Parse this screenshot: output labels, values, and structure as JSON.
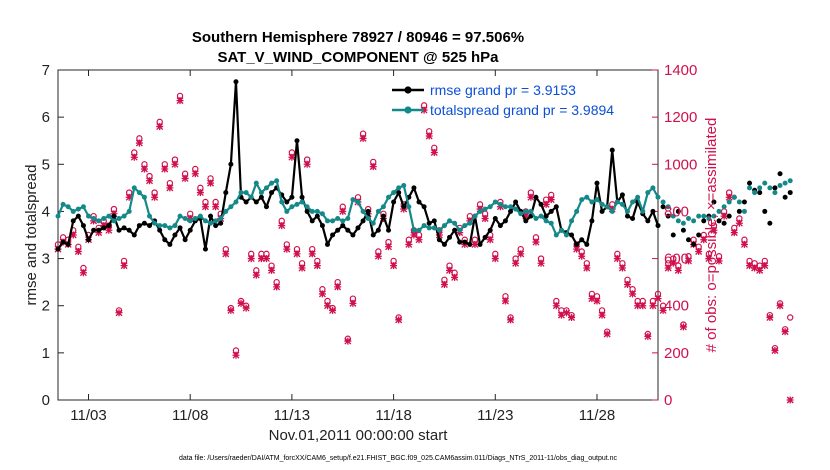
{
  "chart_data": {
    "type": "line",
    "title": "Southern Hemisphere 78927 / 80946 = 97.506%",
    "subtitle": "SAT_V_WIND_COMPONENT @ 525 hPa",
    "xlabel": "Nov.01,2011 00:00:00 start",
    "ylabel": "rmse and totalspread",
    "ylabel_right": "# of obs: o=possible; ×=assimilated",
    "footer": "data file: /Users/raeder/DAI/ATM_forcXX/CAM6_setup/f.e21.FHIST_BGC.f09_025.CAM6assim.011/Diags_NTrS_2011-11/obs_diag_output.nc",
    "xlim": [
      1.5,
      31.0
    ],
    "ylim": [
      0,
      7
    ],
    "ylim_right": [
      0,
      1400
    ],
    "x_tick_labels": [
      "11/03",
      "11/08",
      "11/13",
      "11/18",
      "11/23",
      "11/28"
    ],
    "x_tick_values": [
      3,
      8,
      13,
      18,
      23,
      28
    ],
    "y_ticks": [
      0,
      1,
      2,
      3,
      4,
      5,
      6,
      7
    ],
    "y_ticks_right": [
      0,
      200,
      400,
      600,
      800,
      1000,
      1200,
      1400
    ],
    "legend": [
      {
        "label": "rmse grand pr = 3.9153",
        "color": "#000000"
      },
      {
        "label": "totalspread grand pr = 3.9894",
        "color": "#15898a"
      }
    ],
    "x_start": 1.5,
    "x_step": 0.25,
    "series": [
      {
        "name": "rmse",
        "color": "#000000",
        "axis": "left",
        "values": [
          3.2,
          3.35,
          3.3,
          3.8,
          3.9,
          3.7,
          3.4,
          3.6,
          3.6,
          3.65,
          3.7,
          3.9,
          3.6,
          3.65,
          3.6,
          3.5,
          3.7,
          3.75,
          3.7,
          3.8,
          3.6,
          3.4,
          3.3,
          3.5,
          3.65,
          3.4,
          3.6,
          3.8,
          3.85,
          3.2,
          3.9,
          3.7,
          3.75,
          4.4,
          5.0,
          6.75,
          4.3,
          4.2,
          4.3,
          4.2,
          4.3,
          4.1,
          4.4,
          4.5,
          4.35,
          4.2,
          4.3,
          5.5,
          4.3,
          4.0,
          3.8,
          3.9,
          3.7,
          3.3,
          3.5,
          3.6,
          3.7,
          3.6,
          3.5,
          3.65,
          3.8,
          4.0,
          3.5,
          3.6,
          3.9,
          3.6,
          4.2,
          4.4,
          4.1,
          4.3,
          4.5,
          4.2,
          4.1,
          3.75,
          3.8,
          3.4,
          3.3,
          3.45,
          3.6,
          3.35,
          3.35,
          3.3,
          3.9,
          3.3,
          3.45,
          3.6,
          3.85,
          3.7,
          3.8,
          4.0,
          4.2,
          4.0,
          3.8,
          3.9,
          4.3,
          4.15,
          3.9,
          4.0,
          4.1,
          3.6,
          3.55,
          3.5,
          3.3,
          3.4,
          3.3,
          3.8,
          4.6,
          4.0,
          4.1,
          5.3,
          4.2,
          4.35,
          3.9,
          3.85,
          4.2,
          3.95,
          3.8,
          4.0,
          3.7,
          4.1,
          3.9,
          3.5,
          4.0,
          3.6,
          3.4,
          3.3,
          3.5,
          3.8,
          3.9,
          4.2,
          3.8,
          3.75,
          3.9,
          4.3,
          4.0,
          4.2,
          4.6,
          4.45,
          4.4,
          4.0,
          3.75,
          4.5,
          4.8,
          4.3,
          4.4
        ]
      },
      {
        "name": "totalspread",
        "color": "#15898a",
        "axis": "left",
        "values": [
          3.9,
          4.15,
          4.1,
          4.0,
          4.05,
          4.1,
          3.9,
          3.85,
          3.8,
          3.85,
          3.9,
          3.8,
          3.85,
          3.9,
          4.0,
          4.5,
          4.4,
          4.3,
          3.9,
          3.75,
          3.7,
          3.7,
          3.65,
          3.7,
          3.9,
          3.85,
          3.8,
          3.85,
          3.9,
          3.8,
          3.75,
          3.8,
          3.85,
          4.0,
          4.1,
          4.2,
          4.4,
          4.4,
          4.3,
          4.6,
          4.4,
          4.5,
          4.6,
          4.65,
          4.2,
          4.0,
          4.1,
          4.15,
          4.2,
          4.1,
          4.0,
          4.0,
          3.95,
          3.8,
          3.8,
          3.85,
          3.8,
          3.85,
          4.25,
          4.2,
          4.0,
          3.85,
          3.75,
          4.0,
          4.1,
          4.3,
          4.4,
          4.5,
          4.55,
          4.1,
          3.6,
          3.6,
          3.7,
          3.65,
          3.65,
          3.6,
          3.7,
          3.8,
          3.75,
          3.6,
          3.7,
          3.75,
          3.9,
          4.0,
          4.05,
          4.1,
          4.2,
          4.15,
          4.1,
          4.1,
          4.05,
          3.95,
          4.0,
          4.0,
          3.85,
          3.9,
          3.8,
          3.75,
          3.5,
          3.6,
          3.5,
          3.8,
          4.0,
          4.25,
          4.3,
          4.2,
          4.25,
          4.15,
          4.1,
          4.0,
          4.2,
          4.15,
          4.0,
          4.2,
          4.3,
          4.0,
          4.4,
          4.5,
          4.3,
          4.2,
          4.1,
          3.9,
          3.8,
          3.75,
          3.85,
          3.8,
          3.9,
          3.9,
          3.85,
          3.9,
          4.0,
          4.1,
          4.2,
          4.3,
          4.2,
          4.0,
          4.5,
          4.4,
          4.5,
          4.6,
          4.5,
          4.4,
          4.55,
          4.6,
          4.65
        ]
      },
      {
        "name": "obs_possible",
        "color": "#d0104c",
        "axis": "right",
        "values": [
          660,
          690,
          680,
          720,
          650,
          560,
          700,
          780,
          730,
          760,
          740,
          810,
          380,
          590,
          880,
          1050,
          1110,
          1000,
          950,
          880,
          1180,
          1000,
          920,
          1020,
          1290,
          960,
          790,
          980,
          900,
          840,
          940,
          840,
          790,
          640,
          390,
          210,
          420,
          400,
          620,
          550,
          620,
          620,
          570,
          500,
          760,
          660,
          1050,
          640,
          580,
          1020,
          640,
          590,
          470,
          420,
          390,
          500,
          820,
          260,
          430,
          860,
          1130,
          810,
          1010,
          630,
          790,
          670,
          590,
          350,
          830,
          680,
          720,
          700,
          1250,
          1140,
          1070,
          720,
          510,
          570,
          540,
          730,
          680,
          780,
          680,
          830,
          790,
          700,
          620,
          840,
          440,
          350,
          600,
          640,
          800,
          880,
          690,
          600,
          850,
          870,
          420,
          380,
          380,
          360,
          660,
          630,
          580,
          450,
          440,
          380,
          290,
          830,
          620,
          580,
          510,
          470,
          420,
          420,
          280,
          420,
          450,
          400,
          580,
          600,
          570,
          320,
          610,
          680,
          650,
          700,
          620,
          740,
          610,
          800,
          880,
          730,
          770,
          680,
          590,
          580,
          570,
          590,
          360,
          220,
          410,
          300,
          350
        ]
      },
      {
        "name": "obs_assimilated",
        "color": "#d0104c",
        "axis": "right",
        "values": [
          640,
          670,
          660,
          700,
          630,
          540,
          680,
          760,
          710,
          740,
          720,
          790,
          370,
          570,
          860,
          1030,
          1090,
          980,
          930,
          860,
          1160,
          980,
          900,
          1000,
          1270,
          940,
          770,
          960,
          880,
          820,
          920,
          820,
          770,
          620,
          380,
          190,
          410,
          390,
          600,
          530,
          600,
          600,
          550,
          480,
          740,
          640,
          1030,
          620,
          560,
          1000,
          620,
          570,
          450,
          400,
          380,
          480,
          800,
          250,
          410,
          840,
          1110,
          790,
          990,
          610,
          770,
          650,
          570,
          340,
          810,
          660,
          700,
          680,
          1230,
          1120,
          1050,
          700,
          490,
          550,
          520,
          710,
          660,
          760,
          660,
          810,
          770,
          680,
          600,
          820,
          420,
          340,
          580,
          620,
          780,
          860,
          670,
          580,
          830,
          850,
          400,
          360,
          370,
          350,
          640,
          610,
          560,
          430,
          420,
          360,
          280,
          810,
          600,
          560,
          490,
          450,
          400,
          400,
          270,
          400,
          430,
          380,
          560,
          580,
          550,
          310,
          590,
          660,
          630,
          680,
          600,
          720,
          590,
          780,
          860,
          710,
          750,
          660,
          570,
          560,
          550,
          570,
          350,
          210,
          400,
          290,
          0
        ]
      }
    ]
  }
}
